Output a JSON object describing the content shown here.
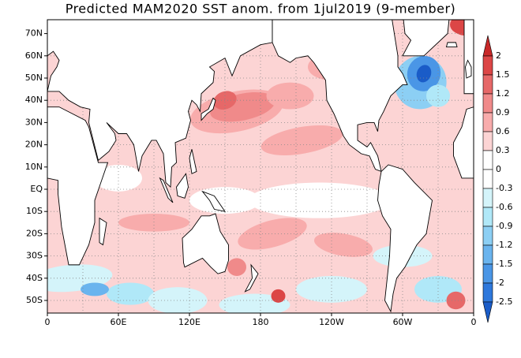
{
  "title": "Predicted MAM2020 SST anom. from 1jul2019 (9-member)",
  "lat_labels": [
    "70N",
    "60N",
    "50N",
    "40N",
    "30N",
    "20N",
    "10N",
    "EQ",
    "10S",
    "20S",
    "30S",
    "40S",
    "50S"
  ],
  "lon_labels": [
    "0",
    "60E",
    "120E",
    "180",
    "120W",
    "60W",
    "0"
  ],
  "colorbar": {
    "labels": [
      "2",
      "1.5",
      "1.2",
      "0.9",
      "0.6",
      "0.3",
      "0",
      "-0.3",
      "-0.6",
      "-0.9",
      "-1.2",
      "-1.5",
      "-2",
      "-2.5"
    ],
    "colors": [
      "#c82828",
      "#dc4646",
      "#e66868",
      "#f08a8a",
      "#f8acac",
      "#fcd4d4",
      "#ffffff",
      "#ffffff",
      "#d4f4fa",
      "#b0e8f8",
      "#8ccff4",
      "#6ab4ee",
      "#4a96e6",
      "#2e78dc",
      "#1a5cc8"
    ]
  }
}
